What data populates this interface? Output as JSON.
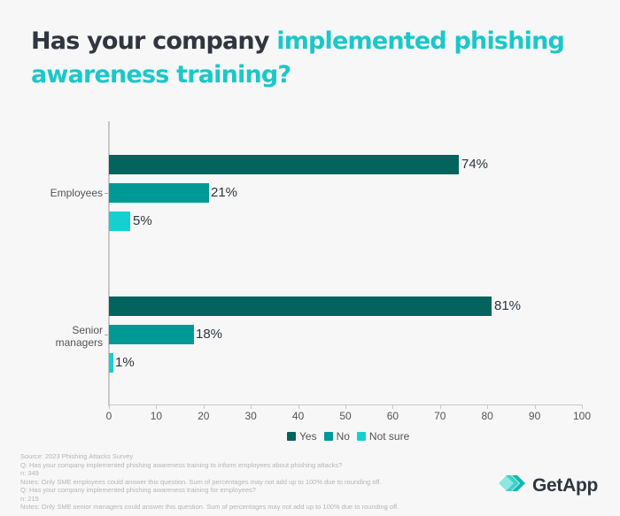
{
  "title": {
    "part1": "Has your company ",
    "part2": "implemented phishing awareness training?"
  },
  "colors": {
    "yes": "#03645e",
    "no": "#009a96",
    "not_sure": "#16cfd0",
    "title_dark": "#2f3640",
    "title_accent": "#1ac8c8"
  },
  "chart_data": {
    "type": "bar",
    "orientation": "horizontal",
    "title": "Has your company implemented phishing awareness training?",
    "categories": [
      "Employees",
      "Senior managers"
    ],
    "series": [
      {
        "name": "Yes",
        "values": [
          74,
          81
        ]
      },
      {
        "name": "No",
        "values": [
          21,
          18
        ]
      },
      {
        "name": "Not sure",
        "values": [
          5,
          1
        ]
      }
    ],
    "data_labels": [
      [
        "74%",
        "21%",
        "5%"
      ],
      [
        "81%",
        "18%",
        "1%"
      ]
    ],
    "xlabel": "",
    "ylabel": "",
    "xlim": [
      0,
      100
    ],
    "xticks": [
      "0",
      "10",
      "20",
      "30",
      "40",
      "50",
      "60",
      "70",
      "80",
      "90",
      "100"
    ],
    "grid": false,
    "legend_position": "bottom"
  },
  "categories": {
    "employees": "Employees",
    "senior_line1": "Senior",
    "senior_line2": "managers"
  },
  "labels": {
    "emp_yes": "74%",
    "emp_no": "21%",
    "emp_ns": "5%",
    "sen_yes": "81%",
    "sen_no": "18%",
    "sen_ns": "1%"
  },
  "legend": {
    "yes": "Yes",
    "no": "No",
    "not_sure": "Not sure"
  },
  "notes": [
    "Source: 2023 Phishing Attacks Survey",
    "Q: Has your company implemented phishing awareness training to inform employees about phishing attacks?",
    "n: 349",
    "Notes: Only SME employees could answer this question. Sum of percentages may not add up to 100% due to rounding off.",
    "Q: Has your company implemented phishing awareness training for employees?",
    "n: 215",
    "Notes: Only SME senior managers could answer this question. Sum of percentages may not add up to 100% due to rounding off."
  ],
  "brand": {
    "name": "GetApp",
    "icon": "getapp-chevrons-icon"
  }
}
